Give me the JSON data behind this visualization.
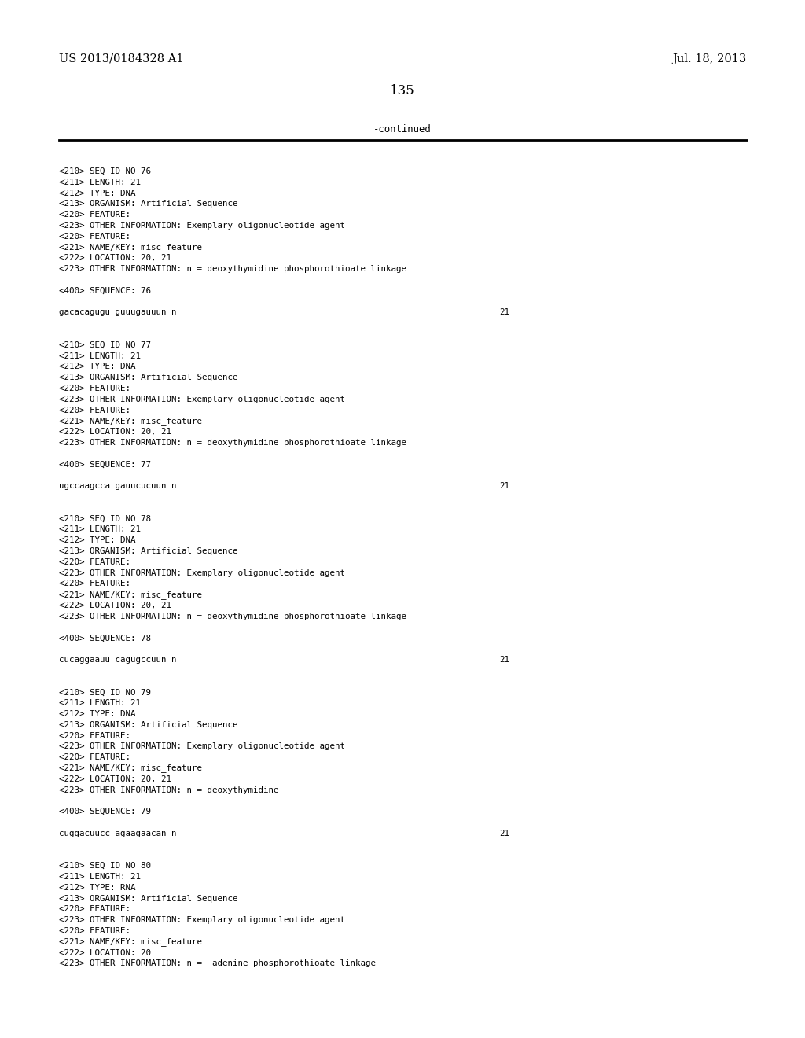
{
  "background_color": "#ffffff",
  "header_left": "US 2013/0184328 A1",
  "header_right": "Jul. 18, 2013",
  "page_number": "135",
  "continued_text": "-continued",
  "monospace_font_size": 7.8,
  "header_font_size": 10.5,
  "page_num_font_size": 12,
  "content_lines": [
    {
      "text": "<210> SEQ ID NO 76"
    },
    {
      "text": "<211> LENGTH: 21"
    },
    {
      "text": "<212> TYPE: DNA"
    },
    {
      "text": "<213> ORGANISM: Artificial Sequence"
    },
    {
      "text": "<220> FEATURE:"
    },
    {
      "text": "<223> OTHER INFORMATION: Exemplary oligonucleotide agent"
    },
    {
      "text": "<220> FEATURE:"
    },
    {
      "text": "<221> NAME/KEY: misc_feature"
    },
    {
      "text": "<222> LOCATION: 20, 21"
    },
    {
      "text": "<223> OTHER INFORMATION: n = deoxythymidine phosphorothioate linkage"
    },
    {
      "text": ""
    },
    {
      "text": "<400> SEQUENCE: 76"
    },
    {
      "text": ""
    },
    {
      "text": "gacacagugu guuugauuun n",
      "num": "21"
    },
    {
      "text": ""
    },
    {
      "text": ""
    },
    {
      "text": "<210> SEQ ID NO 77"
    },
    {
      "text": "<211> LENGTH: 21"
    },
    {
      "text": "<212> TYPE: DNA"
    },
    {
      "text": "<213> ORGANISM: Artificial Sequence"
    },
    {
      "text": "<220> FEATURE:"
    },
    {
      "text": "<223> OTHER INFORMATION: Exemplary oligonucleotide agent"
    },
    {
      "text": "<220> FEATURE:"
    },
    {
      "text": "<221> NAME/KEY: misc_feature"
    },
    {
      "text": "<222> LOCATION: 20, 21"
    },
    {
      "text": "<223> OTHER INFORMATION: n = deoxythymidine phosphorothioate linkage"
    },
    {
      "text": ""
    },
    {
      "text": "<400> SEQUENCE: 77"
    },
    {
      "text": ""
    },
    {
      "text": "ugccaagcca gauucucuun n",
      "num": "21"
    },
    {
      "text": ""
    },
    {
      "text": ""
    },
    {
      "text": "<210> SEQ ID NO 78"
    },
    {
      "text": "<211> LENGTH: 21"
    },
    {
      "text": "<212> TYPE: DNA"
    },
    {
      "text": "<213> ORGANISM: Artificial Sequence"
    },
    {
      "text": "<220> FEATURE:"
    },
    {
      "text": "<223> OTHER INFORMATION: Exemplary oligonucleotide agent"
    },
    {
      "text": "<220> FEATURE:"
    },
    {
      "text": "<221> NAME/KEY: misc_feature"
    },
    {
      "text": "<222> LOCATION: 20, 21"
    },
    {
      "text": "<223> OTHER INFORMATION: n = deoxythymidine phosphorothioate linkage"
    },
    {
      "text": ""
    },
    {
      "text": "<400> SEQUENCE: 78"
    },
    {
      "text": ""
    },
    {
      "text": "cucaggaauu cagugccuun n",
      "num": "21"
    },
    {
      "text": ""
    },
    {
      "text": ""
    },
    {
      "text": "<210> SEQ ID NO 79"
    },
    {
      "text": "<211> LENGTH: 21"
    },
    {
      "text": "<212> TYPE: DNA"
    },
    {
      "text": "<213> ORGANISM: Artificial Sequence"
    },
    {
      "text": "<220> FEATURE:"
    },
    {
      "text": "<223> OTHER INFORMATION: Exemplary oligonucleotide agent"
    },
    {
      "text": "<220> FEATURE:"
    },
    {
      "text": "<221> NAME/KEY: misc_feature"
    },
    {
      "text": "<222> LOCATION: 20, 21"
    },
    {
      "text": "<223> OTHER INFORMATION: n = deoxythymidine"
    },
    {
      "text": ""
    },
    {
      "text": "<400> SEQUENCE: 79"
    },
    {
      "text": ""
    },
    {
      "text": "cuggacuucc agaagaacan n",
      "num": "21"
    },
    {
      "text": ""
    },
    {
      "text": ""
    },
    {
      "text": "<210> SEQ ID NO 80"
    },
    {
      "text": "<211> LENGTH: 21"
    },
    {
      "text": "<212> TYPE: RNA"
    },
    {
      "text": "<213> ORGANISM: Artificial Sequence"
    },
    {
      "text": "<220> FEATURE:"
    },
    {
      "text": "<223> OTHER INFORMATION: Exemplary oligonucleotide agent"
    },
    {
      "text": "<220> FEATURE:"
    },
    {
      "text": "<221> NAME/KEY: misc_feature"
    },
    {
      "text": "<222> LOCATION: 20"
    },
    {
      "text": "<223> OTHER INFORMATION: n =  adenine phosphorothioate linkage"
    }
  ]
}
